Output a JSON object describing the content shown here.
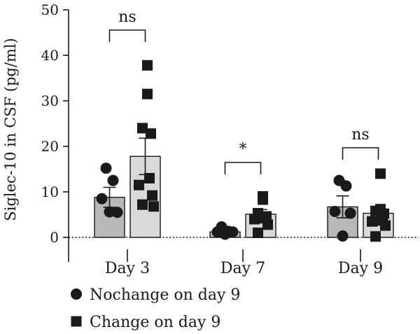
{
  "chart_data": {
    "type": "bar",
    "title": "",
    "xlabel": "",
    "ylabel": "Siglec-10 in CSF (pg/ml)",
    "ylim": [
      0,
      50
    ],
    "yticks": [
      0,
      10,
      20,
      30,
      40,
      50
    ],
    "categories": [
      "Day 3",
      "Day 7",
      "Day 9"
    ],
    "error_bars": "SEM",
    "dashed_zero_line": true,
    "series": [
      {
        "name": "Nochange on day 9",
        "marker": "circle",
        "bar_color": "#b8b8b8",
        "values": [
          8.8,
          1.2,
          6.7
        ],
        "sem": [
          2.2,
          0.5,
          2.4
        ],
        "points": [
          [
            15.2,
            12.5,
            8.5,
            5.5,
            5.6
          ],
          [
            2.3,
            1.3,
            1.2,
            1.2,
            0.7
          ],
          [
            12.5,
            11.3,
            5.7,
            5.3,
            0.3
          ]
        ]
      },
      {
        "name": "Change on day 9",
        "marker": "square",
        "bar_color": "#d9d9d9",
        "values": [
          17.8,
          5.1,
          5.3
        ],
        "sem": [
          4.0,
          1.0,
          1.5
        ],
        "points": [
          [
            37.8,
            31.5,
            24.0,
            22.8,
            13.0,
            11.5,
            9.2,
            7.2,
            6.8
          ],
          [
            9.0,
            8.3,
            5.3,
            4.6,
            4.2,
            4.0,
            2.8,
            1.0
          ],
          [
            14.0,
            6.2,
            5.8,
            5.2,
            3.7,
            3.5,
            2.6,
            0.2
          ]
        ]
      }
    ],
    "significance": [
      {
        "category": "Day 3",
        "label": "ns"
      },
      {
        "category": "Day 7",
        "label": "*"
      },
      {
        "category": "Day 9",
        "label": "ns"
      }
    ],
    "legend_position": "bottom-left"
  }
}
